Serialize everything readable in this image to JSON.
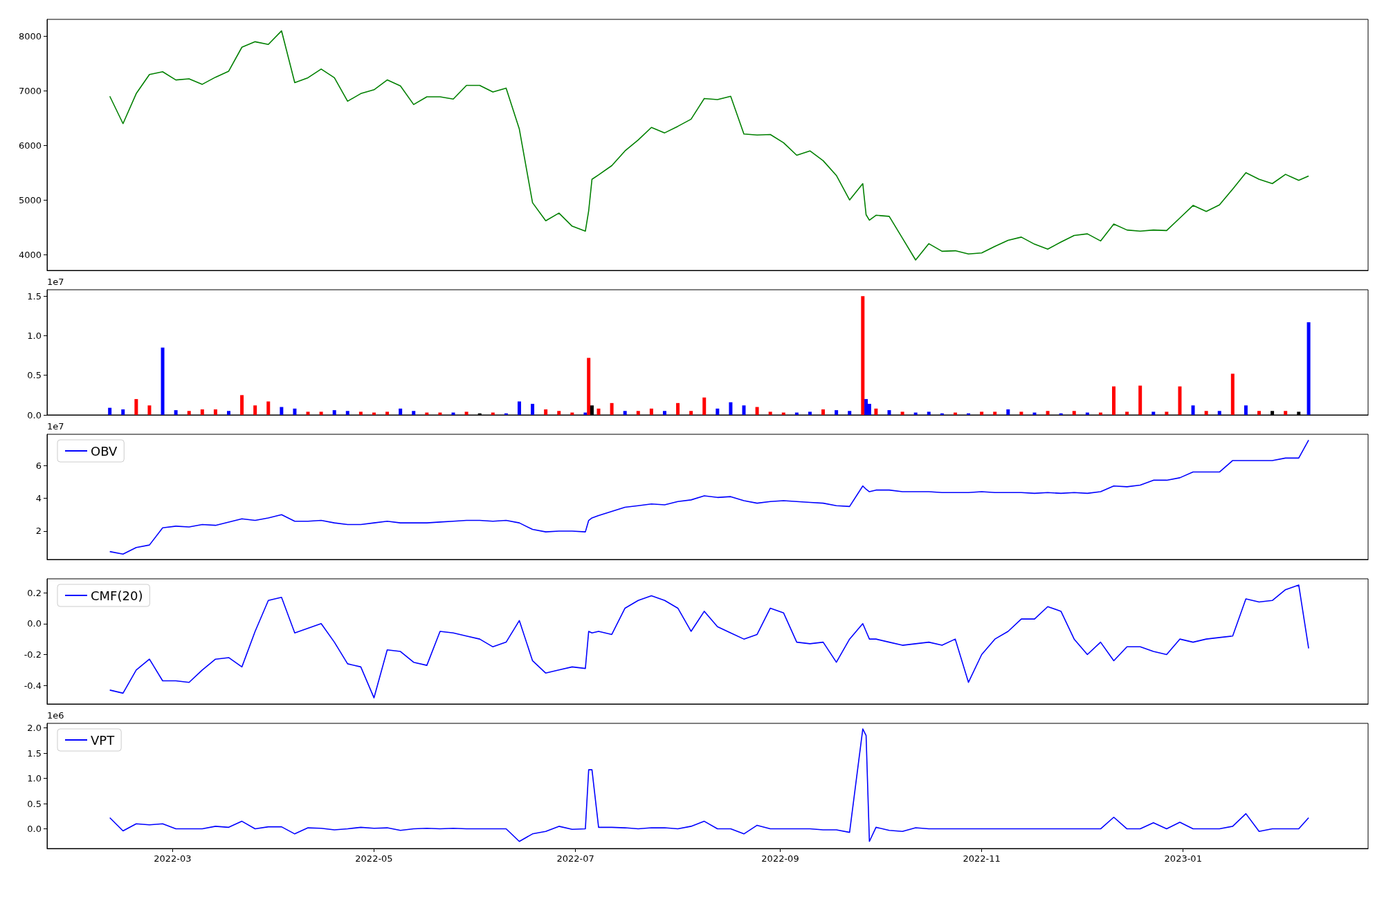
{
  "chart_data": [
    {
      "type": "line",
      "x": [
        "2022-02-10",
        "2022-02-14",
        "2022-02-18",
        "2022-02-22",
        "2022-02-26",
        "2022-03-02",
        "2022-03-06",
        "2022-03-10",
        "2022-03-14",
        "2022-03-18",
        "2022-03-22",
        "2022-03-26",
        "2022-03-30",
        "2022-04-03",
        "2022-04-07",
        "2022-04-11",
        "2022-04-15",
        "2022-04-19",
        "2022-04-23",
        "2022-04-27",
        "2022-05-01",
        "2022-05-05",
        "2022-05-09",
        "2022-05-13",
        "2022-05-17",
        "2022-05-21",
        "2022-05-25",
        "2022-05-29",
        "2022-06-02",
        "2022-06-06",
        "2022-06-10",
        "2022-06-14",
        "2022-06-18",
        "2022-06-22",
        "2022-06-26",
        "2022-06-30",
        "2022-07-04",
        "2022-07-05",
        "2022-07-06",
        "2022-07-08",
        "2022-07-12",
        "2022-07-16",
        "2022-07-20",
        "2022-07-24",
        "2022-07-28",
        "2022-08-01",
        "2022-08-05",
        "2022-08-09",
        "2022-08-13",
        "2022-08-17",
        "2022-08-21",
        "2022-08-25",
        "2022-08-29",
        "2022-09-02",
        "2022-09-06",
        "2022-09-10",
        "2022-09-14",
        "2022-09-18",
        "2022-09-22",
        "2022-09-26",
        "2022-09-27",
        "2022-09-28",
        "2022-09-30",
        "2022-10-04",
        "2022-10-08",
        "2022-10-12",
        "2022-10-16",
        "2022-10-20",
        "2022-10-24",
        "2022-10-28",
        "2022-11-01",
        "2022-11-05",
        "2022-11-09",
        "2022-11-13",
        "2022-11-17",
        "2022-11-21",
        "2022-11-25",
        "2022-11-29",
        "2022-12-03",
        "2022-12-07",
        "2022-12-11",
        "2022-12-15",
        "2022-12-19",
        "2022-12-23",
        "2022-12-27",
        "2022-12-31",
        "2023-01-04",
        "2023-01-08",
        "2023-01-12",
        "2023-01-16",
        "2023-01-20",
        "2023-01-24",
        "2023-01-28",
        "2023-02-01",
        "2023-02-05",
        "2023-02-08"
      ],
      "series": [
        {
          "color": "#008000",
          "values": [
            6900,
            6400,
            6950,
            7300,
            7350,
            7200,
            7220,
            7120,
            7250,
            7360,
            7800,
            7900,
            7850,
            8100,
            7150,
            7240,
            7400,
            7240,
            6810,
            6950,
            7020,
            7200,
            7090,
            6750,
            6890,
            6890,
            6850,
            7100,
            7100,
            6980,
            7050,
            6300,
            4950,
            4620,
            4760,
            4520,
            4430,
            4800,
            5380,
            5460,
            5630,
            5900,
            6100,
            6330,
            6230,
            6350,
            6480,
            6860,
            6840,
            6900,
            6210,
            6190,
            6200,
            6050,
            5820,
            5900,
            5720,
            5450,
            5000,
            5300,
            4730,
            4630,
            4720,
            4700,
            4300,
            3900,
            4200,
            4060,
            4070,
            4010,
            4030,
            4150,
            4260,
            4320,
            4190,
            4100,
            4230,
            4350,
            4380,
            4250,
            4560,
            4450,
            4430,
            4450,
            4440,
            4670,
            4900,
            4790,
            4910,
            5200,
            5500,
            5380,
            5300,
            5470,
            5360,
            5440
          ]
        }
      ],
      "xlim": [
        "2022-01-22",
        "2023-02-26"
      ],
      "xticks": [
        "2022-03",
        "2022-05",
        "2022-07",
        "2022-09",
        "2022-11",
        "2023-01"
      ],
      "ylim": [
        3710,
        8310
      ],
      "yticks": [
        4000,
        5000,
        6000,
        7000,
        8000
      ],
      "tick_labels": "y"
    },
    {
      "type": "bar",
      "annotations": [
        "1e7"
      ],
      "x": [
        "2022-02-10",
        "2022-02-14",
        "2022-02-18",
        "2022-02-22",
        "2022-02-26",
        "2022-03-02",
        "2022-03-06",
        "2022-03-10",
        "2022-03-14",
        "2022-03-18",
        "2022-03-22",
        "2022-03-26",
        "2022-03-30",
        "2022-04-03",
        "2022-04-07",
        "2022-04-11",
        "2022-04-15",
        "2022-04-19",
        "2022-04-23",
        "2022-04-27",
        "2022-05-01",
        "2022-05-05",
        "2022-05-09",
        "2022-05-13",
        "2022-05-17",
        "2022-05-21",
        "2022-05-25",
        "2022-05-29",
        "2022-06-02",
        "2022-06-06",
        "2022-06-10",
        "2022-06-14",
        "2022-06-18",
        "2022-06-22",
        "2022-06-26",
        "2022-06-30",
        "2022-07-04",
        "2022-07-05",
        "2022-07-06",
        "2022-07-08",
        "2022-07-12",
        "2022-07-16",
        "2022-07-20",
        "2022-07-24",
        "2022-07-28",
        "2022-08-01",
        "2022-08-05",
        "2022-08-09",
        "2022-08-13",
        "2022-08-17",
        "2022-08-21",
        "2022-08-25",
        "2022-08-29",
        "2022-09-02",
        "2022-09-06",
        "2022-09-10",
        "2022-09-14",
        "2022-09-18",
        "2022-09-22",
        "2022-09-26",
        "2022-09-27",
        "2022-09-28",
        "2022-09-30",
        "2022-10-04",
        "2022-10-08",
        "2022-10-12",
        "2022-10-16",
        "2022-10-20",
        "2022-10-24",
        "2022-10-28",
        "2022-11-01",
        "2022-11-05",
        "2022-11-09",
        "2022-11-13",
        "2022-11-17",
        "2022-11-21",
        "2022-11-25",
        "2022-11-29",
        "2022-12-03",
        "2022-12-07",
        "2022-12-11",
        "2022-12-15",
        "2022-12-19",
        "2022-12-23",
        "2022-12-27",
        "2022-12-31",
        "2023-01-04",
        "2023-01-08",
        "2023-01-12",
        "2023-01-16",
        "2023-01-20",
        "2023-01-24",
        "2023-01-28",
        "2023-02-01",
        "2023-02-05",
        "2023-02-08"
      ],
      "series": [
        {
          "values": [
            0.09,
            0.07,
            0.2,
            0.12,
            0.85,
            0.06,
            0.05,
            0.07,
            0.07,
            0.05,
            0.25,
            0.12,
            0.17,
            0.1,
            0.08,
            0.04,
            0.04,
            0.06,
            0.05,
            0.04,
            0.03,
            0.04,
            0.08,
            0.05,
            0.03,
            0.03,
            0.03,
            0.04,
            0.02,
            0.03,
            0.02,
            0.17,
            0.14,
            0.07,
            0.05,
            0.03,
            0.03,
            0.72,
            0.12,
            0.08,
            0.15,
            0.05,
            0.05,
            0.08,
            0.05,
            0.15,
            0.05,
            0.22,
            0.08,
            0.16,
            0.12,
            0.1,
            0.04,
            0.03,
            0.03,
            0.04,
            0.07,
            0.06,
            0.05,
            1.5,
            0.2,
            0.14,
            0.08,
            0.06,
            0.04,
            0.03,
            0.04,
            0.02,
            0.03,
            0.02,
            0.04,
            0.04,
            0.07,
            0.04,
            0.03,
            0.05,
            0.02,
            0.05,
            0.03,
            0.03,
            0.36,
            0.04,
            0.37,
            0.04,
            0.04,
            0.36,
            0.12,
            0.05,
            0.05,
            0.52,
            0.12,
            0.05,
            0.05,
            0.05,
            0.04,
            1.17
          ],
          "colors": [
            "#0000ff",
            "#0000ff",
            "#ff0000",
            "#ff0000",
            "#0000ff",
            "#0000ff",
            "#ff0000",
            "#ff0000",
            "#ff0000",
            "#0000ff",
            "#ff0000",
            "#ff0000",
            "#ff0000",
            "#0000ff",
            "#0000ff",
            "#ff0000",
            "#ff0000",
            "#0000ff",
            "#0000ff",
            "#ff0000",
            "#ff0000",
            "#ff0000",
            "#0000ff",
            "#0000ff",
            "#ff0000",
            "#ff0000",
            "#0000ff",
            "#ff0000",
            "#000000",
            "#ff0000",
            "#0000ff",
            "#0000ff",
            "#0000ff",
            "#ff0000",
            "#ff0000",
            "#ff0000",
            "#0000ff",
            "#ff0000",
            "#000000",
            "#ff0000",
            "#ff0000",
            "#0000ff",
            "#ff0000",
            "#ff0000",
            "#0000ff",
            "#ff0000",
            "#ff0000",
            "#ff0000",
            "#0000ff",
            "#0000ff",
            "#0000ff",
            "#ff0000",
            "#ff0000",
            "#ff0000",
            "#0000ff",
            "#0000ff",
            "#ff0000",
            "#0000ff",
            "#0000ff",
            "#ff0000",
            "#0000ff",
            "#0000ff",
            "#ff0000",
            "#0000ff",
            "#ff0000",
            "#0000ff",
            "#0000ff",
            "#0000ff",
            "#ff0000",
            "#0000ff",
            "#ff0000",
            "#ff0000",
            "#0000ff",
            "#ff0000",
            "#0000ff",
            "#ff0000",
            "#0000ff",
            "#ff0000",
            "#0000ff",
            "#ff0000",
            "#ff0000",
            "#ff0000",
            "#ff0000",
            "#0000ff",
            "#ff0000",
            "#ff0000",
            "#0000ff",
            "#ff0000",
            "#0000ff",
            "#ff0000",
            "#0000ff",
            "#ff0000",
            "#000000",
            "#ff0000",
            "#000000",
            "#0000ff"
          ]
        }
      ],
      "xlim": [
        "2022-01-22",
        "2023-02-26"
      ],
      "xticks": [
        "2022-03",
        "2022-05",
        "2022-07",
        "2022-09",
        "2022-11",
        "2023-01"
      ],
      "ylim": [
        0,
        1.58
      ],
      "yticks": [
        {
          "value": 0,
          "label": "0.0"
        },
        0.5,
        {
          "value": 1,
          "label": "1.0"
        },
        1.5
      ],
      "tick_labels": "y"
    },
    {
      "type": "line",
      "annotations": [
        "1e7"
      ],
      "legend": "top left",
      "x": [
        "2022-02-10",
        "2022-02-14",
        "2022-02-18",
        "2022-02-22",
        "2022-02-26",
        "2022-03-02",
        "2022-03-06",
        "2022-03-10",
        "2022-03-14",
        "2022-03-18",
        "2022-03-22",
        "2022-03-26",
        "2022-03-30",
        "2022-04-03",
        "2022-04-07",
        "2022-04-11",
        "2022-04-15",
        "2022-04-19",
        "2022-04-23",
        "2022-04-27",
        "2022-05-01",
        "2022-05-05",
        "2022-05-09",
        "2022-05-13",
        "2022-05-17",
        "2022-05-21",
        "2022-05-25",
        "2022-05-29",
        "2022-06-02",
        "2022-06-06",
        "2022-06-10",
        "2022-06-14",
        "2022-06-18",
        "2022-06-22",
        "2022-06-26",
        "2022-06-30",
        "2022-07-04",
        "2022-07-05",
        "2022-07-06",
        "2022-07-08",
        "2022-07-12",
        "2022-07-16",
        "2022-07-20",
        "2022-07-24",
        "2022-07-28",
        "2022-08-01",
        "2022-08-05",
        "2022-08-09",
        "2022-08-13",
        "2022-08-17",
        "2022-08-21",
        "2022-08-25",
        "2022-08-29",
        "2022-09-02",
        "2022-09-06",
        "2022-09-10",
        "2022-09-14",
        "2022-09-18",
        "2022-09-22",
        "2022-09-26",
        "2022-09-27",
        "2022-09-28",
        "2022-09-30",
        "2022-10-04",
        "2022-10-08",
        "2022-10-12",
        "2022-10-16",
        "2022-10-20",
        "2022-10-24",
        "2022-10-28",
        "2022-11-01",
        "2022-11-05",
        "2022-11-09",
        "2022-11-13",
        "2022-11-17",
        "2022-11-21",
        "2022-11-25",
        "2022-11-29",
        "2022-12-03",
        "2022-12-07",
        "2022-12-11",
        "2022-12-15",
        "2022-12-19",
        "2022-12-23",
        "2022-12-27",
        "2022-12-31",
        "2023-01-04",
        "2023-01-08",
        "2023-01-12",
        "2023-01-16",
        "2023-01-20",
        "2023-01-24",
        "2023-01-28",
        "2023-02-01",
        "2023-02-05",
        "2023-02-08"
      ],
      "series": [
        {
          "name": "OBV",
          "color": "#0000ff",
          "values": [
            0.75,
            0.6,
            1.0,
            1.15,
            2.2,
            2.3,
            2.25,
            2.4,
            2.35,
            2.55,
            2.75,
            2.65,
            2.8,
            3.0,
            2.6,
            2.6,
            2.65,
            2.5,
            2.4,
            2.4,
            2.5,
            2.6,
            2.5,
            2.5,
            2.5,
            2.55,
            2.6,
            2.65,
            2.65,
            2.6,
            2.65,
            2.5,
            2.1,
            1.95,
            2.0,
            2.0,
            1.95,
            2.65,
            2.8,
            2.95,
            3.2,
            3.45,
            3.55,
            3.65,
            3.6,
            3.8,
            3.9,
            4.15,
            4.05,
            4.1,
            3.85,
            3.7,
            3.8,
            3.85,
            3.8,
            3.75,
            3.7,
            3.55,
            3.5,
            4.75,
            4.55,
            4.4,
            4.5,
            4.5,
            4.4,
            4.4,
            4.4,
            4.35,
            4.35,
            4.35,
            4.4,
            4.35,
            4.35,
            4.35,
            4.3,
            4.35,
            4.3,
            4.35,
            4.3,
            4.4,
            4.75,
            4.7,
            4.8,
            5.1,
            5.1,
            5.25,
            5.6,
            5.6,
            5.6,
            6.3,
            6.3,
            6.3,
            6.3,
            6.45,
            6.45,
            7.55
          ]
        }
      ],
      "xlim": [
        "2022-01-22",
        "2023-02-26"
      ],
      "xticks": [
        "2022-03",
        "2022-05",
        "2022-07",
        "2022-09",
        "2022-11",
        "2023-01"
      ],
      "ylim": [
        0.27,
        7.9
      ],
      "yticks": [
        2,
        4,
        6
      ],
      "tick_labels": "y"
    },
    {
      "type": "line",
      "legend": "top left",
      "x": [
        "2022-02-10",
        "2022-02-14",
        "2022-02-18",
        "2022-02-22",
        "2022-02-26",
        "2022-03-02",
        "2022-03-06",
        "2022-03-10",
        "2022-03-14",
        "2022-03-18",
        "2022-03-22",
        "2022-03-26",
        "2022-03-30",
        "2022-04-03",
        "2022-04-07",
        "2022-04-11",
        "2022-04-15",
        "2022-04-19",
        "2022-04-23",
        "2022-04-27",
        "2022-05-01",
        "2022-05-05",
        "2022-05-09",
        "2022-05-13",
        "2022-05-17",
        "2022-05-21",
        "2022-05-25",
        "2022-05-29",
        "2022-06-02",
        "2022-06-06",
        "2022-06-10",
        "2022-06-14",
        "2022-06-18",
        "2022-06-22",
        "2022-06-26",
        "2022-06-30",
        "2022-07-04",
        "2022-07-05",
        "2022-07-06",
        "2022-07-08",
        "2022-07-12",
        "2022-07-16",
        "2022-07-20",
        "2022-07-24",
        "2022-07-28",
        "2022-08-01",
        "2022-08-05",
        "2022-08-09",
        "2022-08-13",
        "2022-08-17",
        "2022-08-21",
        "2022-08-25",
        "2022-08-29",
        "2022-09-02",
        "2022-09-06",
        "2022-09-10",
        "2022-09-14",
        "2022-09-18",
        "2022-09-22",
        "2022-09-26",
        "2022-09-27",
        "2022-09-28",
        "2022-09-30",
        "2022-10-04",
        "2022-10-08",
        "2022-10-12",
        "2022-10-16",
        "2022-10-20",
        "2022-10-24",
        "2022-10-28",
        "2022-11-01",
        "2022-11-05",
        "2022-11-09",
        "2022-11-13",
        "2022-11-17",
        "2022-11-21",
        "2022-11-25",
        "2022-11-29",
        "2022-12-03",
        "2022-12-07",
        "2022-12-11",
        "2022-12-15",
        "2022-12-19",
        "2022-12-23",
        "2022-12-27",
        "2022-12-31",
        "2023-01-04",
        "2023-01-08",
        "2023-01-12",
        "2023-01-16",
        "2023-01-20",
        "2023-01-24",
        "2023-01-28",
        "2023-02-01",
        "2023-02-05",
        "2023-02-08"
      ],
      "series": [
        {
          "name": "CMF(20)",
          "color": "#0000ff",
          "values": [
            -0.43,
            -0.45,
            -0.3,
            -0.23,
            -0.37,
            -0.37,
            -0.38,
            -0.3,
            -0.23,
            -0.22,
            -0.28,
            -0.05,
            0.15,
            0.17,
            -0.06,
            -0.03,
            0.0,
            -0.12,
            -0.26,
            -0.28,
            -0.48,
            -0.17,
            -0.18,
            -0.25,
            -0.27,
            -0.05,
            -0.06,
            -0.08,
            -0.1,
            -0.15,
            -0.12,
            0.02,
            -0.24,
            -0.32,
            -0.3,
            -0.28,
            -0.29,
            -0.05,
            -0.06,
            -0.05,
            -0.07,
            0.1,
            0.15,
            0.18,
            0.15,
            0.1,
            -0.05,
            0.08,
            -0.02,
            -0.06,
            -0.1,
            -0.07,
            0.1,
            0.07,
            -0.12,
            -0.13,
            -0.12,
            -0.25,
            -0.1,
            0.0,
            -0.05,
            -0.1,
            -0.1,
            -0.12,
            -0.14,
            -0.13,
            -0.12,
            -0.14,
            -0.1,
            -0.38,
            -0.2,
            -0.1,
            -0.05,
            0.03,
            0.03,
            0.11,
            0.08,
            -0.1,
            -0.2,
            -0.12,
            -0.24,
            -0.15,
            -0.15,
            -0.18,
            -0.2,
            -0.1,
            -0.12,
            -0.1,
            -0.09,
            -0.08,
            0.16,
            0.14,
            0.15,
            0.22,
            0.25,
            -0.16
          ]
        }
      ],
      "xlim": [
        "2022-01-22",
        "2023-02-26"
      ],
      "xticks": [
        "2022-03",
        "2022-05",
        "2022-07",
        "2022-09",
        "2022-11",
        "2023-01"
      ],
      "ylim": [
        -0.52,
        0.29
      ],
      "yticks": [
        -0.4,
        -0.2,
        {
          "value": 0,
          "label": "0.0"
        },
        0.2
      ],
      "tick_labels": "y"
    },
    {
      "type": "line",
      "annotations": [
        "1e6"
      ],
      "legend": "top left",
      "x": [
        "2022-02-10",
        "2022-02-14",
        "2022-02-18",
        "2022-02-22",
        "2022-02-26",
        "2022-03-02",
        "2022-03-06",
        "2022-03-10",
        "2022-03-14",
        "2022-03-18",
        "2022-03-22",
        "2022-03-26",
        "2022-03-30",
        "2022-04-03",
        "2022-04-07",
        "2022-04-11",
        "2022-04-15",
        "2022-04-19",
        "2022-04-23",
        "2022-04-27",
        "2022-05-01",
        "2022-05-05",
        "2022-05-09",
        "2022-05-13",
        "2022-05-17",
        "2022-05-21",
        "2022-05-25",
        "2022-05-29",
        "2022-06-02",
        "2022-06-06",
        "2022-06-10",
        "2022-06-14",
        "2022-06-18",
        "2022-06-22",
        "2022-06-26",
        "2022-06-30",
        "2022-07-04",
        "2022-07-05",
        "2022-07-06",
        "2022-07-08",
        "2022-07-12",
        "2022-07-16",
        "2022-07-20",
        "2022-07-24",
        "2022-07-28",
        "2022-08-01",
        "2022-08-05",
        "2022-08-09",
        "2022-08-13",
        "2022-08-17",
        "2022-08-21",
        "2022-08-25",
        "2022-08-29",
        "2022-09-02",
        "2022-09-06",
        "2022-09-10",
        "2022-09-14",
        "2022-09-18",
        "2022-09-22",
        "2022-09-26",
        "2022-09-27",
        "2022-09-28",
        "2022-09-30",
        "2022-10-04",
        "2022-10-08",
        "2022-10-12",
        "2022-10-16",
        "2022-10-20",
        "2022-10-24",
        "2022-10-28",
        "2022-11-01",
        "2022-11-05",
        "2022-11-09",
        "2022-11-13",
        "2022-11-17",
        "2022-11-21",
        "2022-11-25",
        "2022-11-29",
        "2022-12-03",
        "2022-12-07",
        "2022-12-11",
        "2022-12-15",
        "2022-12-19",
        "2022-12-23",
        "2022-12-27",
        "2022-12-31",
        "2023-01-04",
        "2023-01-08",
        "2023-01-12",
        "2023-01-16",
        "2023-01-20",
        "2023-01-24",
        "2023-01-28",
        "2023-02-01",
        "2023-02-05",
        "2023-02-08"
      ],
      "series": [
        {
          "name": "VPT",
          "color": "#0000ff",
          "values": [
            0.22,
            -0.04,
            0.1,
            0.08,
            0.1,
            0.0,
            0.0,
            0.0,
            0.05,
            0.03,
            0.15,
            0.0,
            0.04,
            0.04,
            -0.1,
            0.02,
            0.01,
            -0.02,
            0.0,
            0.03,
            0.01,
            0.02,
            -0.03,
            0.0,
            0.01,
            0.0,
            0.01,
            0.0,
            0.0,
            0.0,
            0.0,
            -0.25,
            -0.1,
            -0.05,
            0.05,
            -0.01,
            0.0,
            1.17,
            1.17,
            0.03,
            0.03,
            0.02,
            0.0,
            0.02,
            0.02,
            0.0,
            0.05,
            0.15,
            0.0,
            0.0,
            -0.1,
            0.07,
            0.0,
            0.0,
            0.0,
            0.0,
            -0.02,
            -0.02,
            -0.07,
            1.98,
            1.85,
            -0.25,
            0.03,
            -0.03,
            -0.05,
            0.02,
            0.0,
            0.0,
            0.0,
            0.0,
            0.0,
            0.0,
            0.0,
            0.0,
            0.0,
            0.0,
            0.0,
            0.0,
            0.0,
            0.0,
            0.23,
            0.0,
            0.0,
            0.12,
            0.0,
            0.13,
            0.0,
            0.0,
            0.0,
            0.05,
            0.3,
            -0.05,
            0.0,
            0.0,
            0.0,
            0.22
          ]
        }
      ],
      "xlim": [
        "2022-01-22",
        "2023-02-26"
      ],
      "xticks": [
        "2022-03",
        "2022-05",
        "2022-07",
        "2022-09",
        "2022-11",
        "2023-01"
      ],
      "ylim": [
        -0.39,
        2.09
      ],
      "yticks": [
        {
          "value": 0,
          "label": "0.0"
        },
        0.5,
        {
          "value": 1,
          "label": "1.0"
        },
        1.5,
        {
          "value": 2,
          "label": "2.0"
        }
      ]
    }
  ]
}
